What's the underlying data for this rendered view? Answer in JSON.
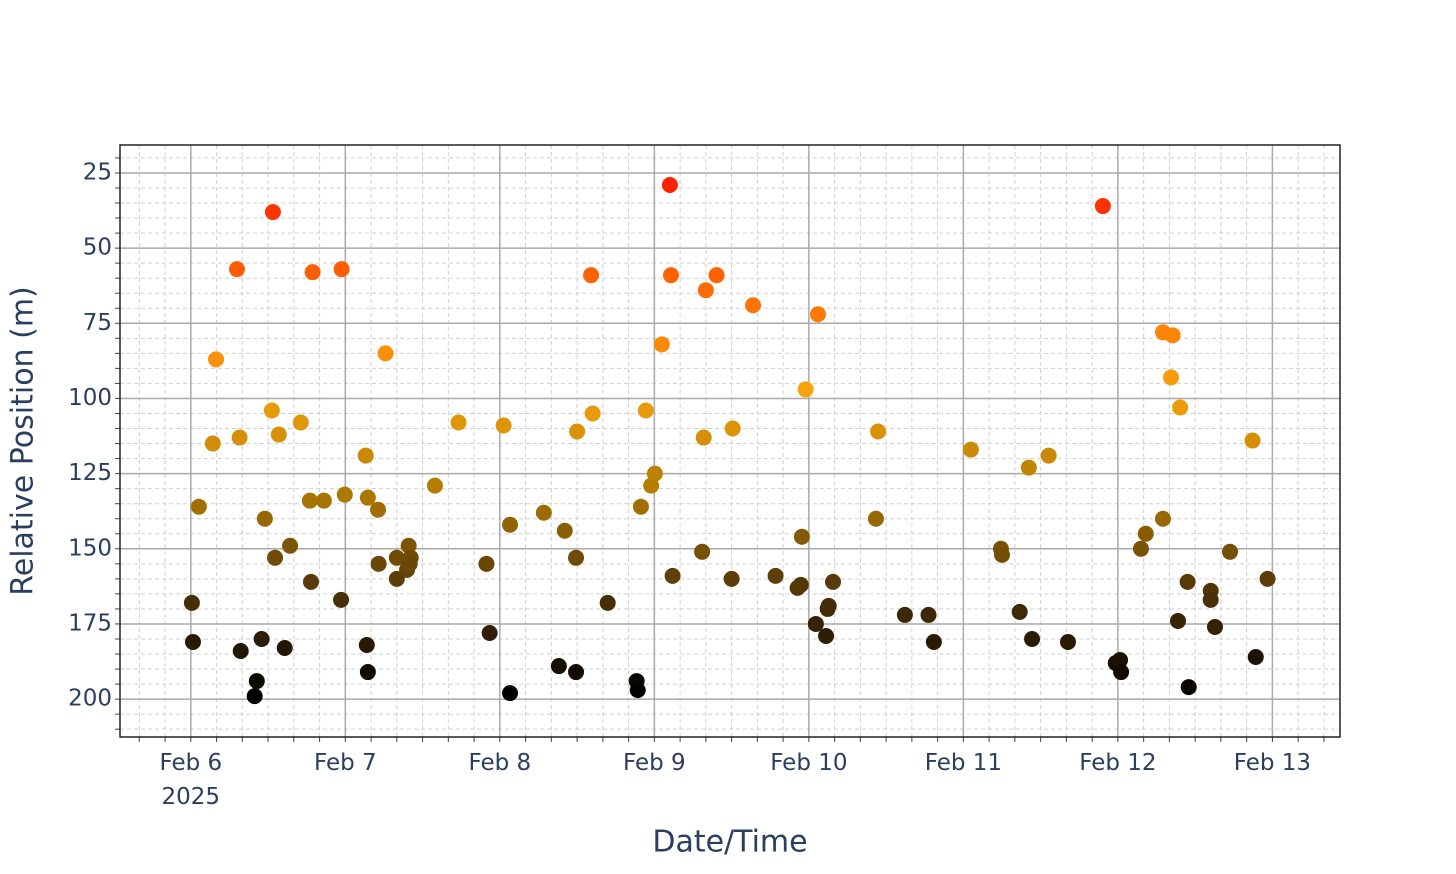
{
  "chart_data": {
    "type": "scatter",
    "x_label": "Date/Time",
    "y_label": "Relative Position (m)",
    "x": [
      "2025-02-06 00:10",
      "2025-02-06 00:20",
      "2025-02-06 01:15",
      "2025-02-06 03:25",
      "2025-02-06 03:55",
      "2025-02-06 07:10",
      "2025-02-06 07:35",
      "2025-02-06 07:45",
      "2025-02-06 09:55",
      "2025-02-06 10:15",
      "2025-02-06 11:00",
      "2025-02-06 11:30",
      "2025-02-06 12:35",
      "2025-02-06 12:45",
      "2025-02-06 13:05",
      "2025-02-06 13:40",
      "2025-02-06 14:35",
      "2025-02-06 15:25",
      "2025-02-06 17:05",
      "2025-02-06 18:30",
      "2025-02-06 18:40",
      "2025-02-06 18:55",
      "2025-02-06 20:40",
      "2025-02-06 23:20",
      "2025-02-06 23:25",
      "2025-02-06 23:55",
      "2025-02-07 03:10",
      "2025-02-07 03:20",
      "2025-02-07 03:30",
      "2025-02-07 03:30",
      "2025-02-07 05:05",
      "2025-02-07 05:10",
      "2025-02-07 06:15",
      "2025-02-07 08:00",
      "2025-02-07 08:00",
      "2025-02-07 09:35",
      "2025-02-07 09:50",
      "2025-02-07 10:10",
      "2025-02-07 10:00",
      "2025-02-07 13:55",
      "2025-02-07 17:35",
      "2025-02-07 21:55",
      "2025-02-07 22:25",
      "2025-02-08 00:35",
      "2025-02-08 01:35",
      "2025-02-08 01:35",
      "2025-02-08 06:50",
      "2025-02-08 09:10",
      "2025-02-08 10:05",
      "2025-02-08 11:50",
      "2025-02-08 12:00",
      "2025-02-08 11:50",
      "2025-02-08 14:10",
      "2025-02-08 14:25",
      "2025-02-08 16:45",
      "2025-02-08 21:15",
      "2025-02-08 21:25",
      "2025-02-08 21:55",
      "2025-02-08 22:40",
      "2025-02-08 23:30",
      "2025-02-09 00:05",
      "2025-02-09 01:10",
      "2025-02-09 02:25",
      "2025-02-09 02:35",
      "2025-02-09 02:50",
      "2025-02-09 07:25",
      "2025-02-09 07:40",
      "2025-02-09 08:00",
      "2025-02-09 09:40",
      "2025-02-09 12:00",
      "2025-02-09 12:10",
      "2025-02-09 15:20",
      "2025-02-09 18:50",
      "2025-02-09 22:15",
      "2025-02-09 22:45",
      "2025-02-09 22:55",
      "2025-02-09 23:30",
      "2025-02-10 01:05",
      "2025-02-10 01:25",
      "2025-02-10 02:40",
      "2025-02-10 02:55",
      "2025-02-10 03:05",
      "2025-02-10 03:45",
      "2025-02-10 10:25",
      "2025-02-10 10:45",
      "2025-02-10 14:55",
      "2025-02-10 18:35",
      "2025-02-10 19:25",
      "2025-02-11 01:10",
      "2025-02-11 05:50",
      "2025-02-11 06:00",
      "2025-02-11 08:45",
      "2025-02-11 10:10",
      "2025-02-11 10:40",
      "2025-02-11 13:15",
      "2025-02-11 16:15",
      "2025-02-11 21:40",
      "2025-02-11 23:40",
      "2025-02-12 00:20",
      "2025-02-12 00:30",
      "2025-02-12 03:35",
      "2025-02-12 04:20",
      "2025-02-12 07:00",
      "2025-02-12 07:00",
      "2025-02-12 08:30",
      "2025-02-12 08:15",
      "2025-02-12 09:20",
      "2025-02-12 09:40",
      "2025-02-12 10:50",
      "2025-02-12 11:00",
      "2025-02-12 14:25",
      "2025-02-12 14:25",
      "2025-02-12 15:05",
      "2025-02-12 17:25",
      "2025-02-12 20:55",
      "2025-02-12 21:25",
      "2025-02-12 23:15"
    ],
    "values": [
      168,
      181,
      136,
      115,
      87,
      57,
      113,
      184,
      199,
      194,
      180,
      140,
      104,
      38,
      153,
      112,
      183,
      149,
      108,
      134,
      161,
      58,
      134,
      167,
      57,
      132,
      119,
      182,
      133,
      191,
      137,
      155,
      85,
      160,
      153,
      157,
      149,
      153,
      155,
      129,
      108,
      155,
      178,
      109,
      142,
      198,
      138,
      189,
      144,
      191,
      111,
      153,
      59,
      105,
      168,
      194,
      197,
      136,
      104,
      129,
      125,
      82,
      29,
      59,
      159,
      151,
      113,
      64,
      59,
      160,
      110,
      69,
      159,
      163,
      162,
      146,
      97,
      175,
      72,
      179,
      170,
      169,
      161,
      140,
      111,
      172,
      172,
      181,
      117,
      150,
      152,
      171,
      123,
      180,
      119,
      181,
      36,
      188,
      187,
      191,
      150,
      145,
      140,
      78,
      79,
      93,
      174,
      103,
      161,
      196,
      164,
      167,
      176,
      151,
      114,
      186,
      160
    ],
    "colorscale": [
      "#ff2200",
      "#ff6a00",
      "#f7a30d",
      "#b07a00",
      "#4d3208",
      "#000000"
    ],
    "xlim": [
      "2025-02-05 13:00",
      "2025-02-13 10:30"
    ],
    "xticks": [
      {
        "value": "2025-02-06",
        "label": "Feb 6\n2025"
      },
      {
        "value": "2025-02-07",
        "label": "Feb 7"
      },
      {
        "value": "2025-02-08",
        "label": "Feb 8"
      },
      {
        "value": "2025-02-09",
        "label": "Feb 9"
      },
      {
        "value": "2025-02-10",
        "label": "Feb 10"
      },
      {
        "value": "2025-02-11",
        "label": "Feb 11"
      },
      {
        "value": "2025-02-12",
        "label": "Feb 12"
      },
      {
        "value": "2025-02-13",
        "label": "Feb 13"
      }
    ],
    "ylim": [
      212.6,
      15.7
    ],
    "yticks": [
      25,
      50,
      75,
      100,
      125,
      150,
      175,
      200
    ],
    "grid": true,
    "minor_grid": true
  }
}
